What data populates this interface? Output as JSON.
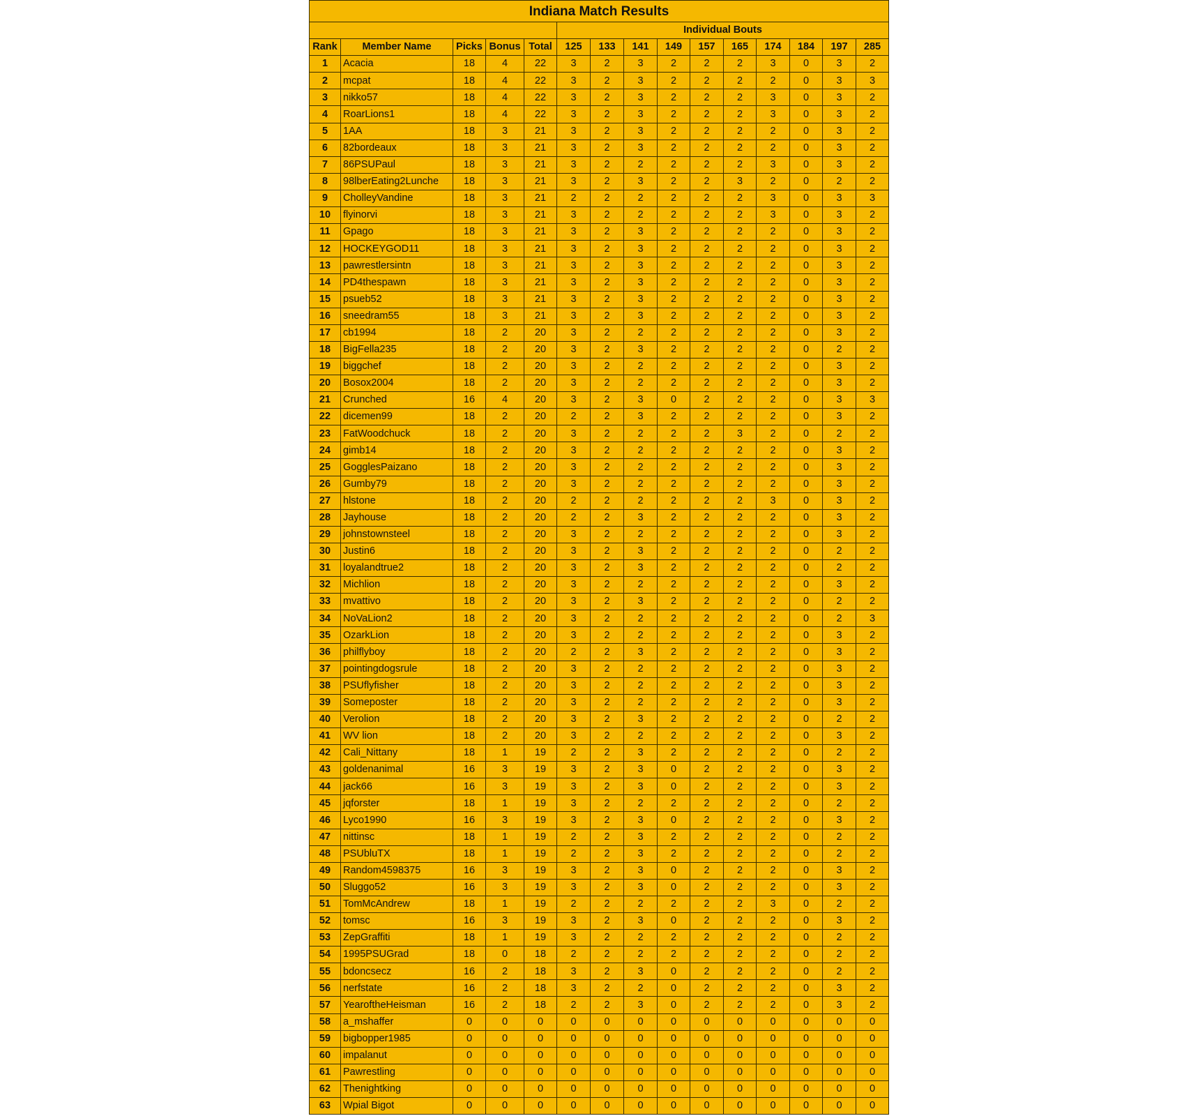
{
  "title": "Indiana Match Results",
  "group_header": "Individual Bouts",
  "columns": [
    "Rank",
    "Member Name",
    "Picks",
    "Bonus",
    "Total",
    "125",
    "133",
    "141",
    "149",
    "157",
    "165",
    "174",
    "184",
    "197",
    "285"
  ],
  "rows": [
    [
      "1",
      "Acacia",
      "18",
      "4",
      "22",
      "3",
      "2",
      "3",
      "2",
      "2",
      "2",
      "3",
      "0",
      "3",
      "2"
    ],
    [
      "2",
      "mcpat",
      "18",
      "4",
      "22",
      "3",
      "2",
      "3",
      "2",
      "2",
      "2",
      "2",
      "0",
      "3",
      "3"
    ],
    [
      "3",
      "nikko57",
      "18",
      "4",
      "22",
      "3",
      "2",
      "3",
      "2",
      "2",
      "2",
      "3",
      "0",
      "3",
      "2"
    ],
    [
      "4",
      "RoarLions1",
      "18",
      "4",
      "22",
      "3",
      "2",
      "3",
      "2",
      "2",
      "2",
      "3",
      "0",
      "3",
      "2"
    ],
    [
      "5",
      "1AA",
      "18",
      "3",
      "21",
      "3",
      "2",
      "3",
      "2",
      "2",
      "2",
      "2",
      "0",
      "3",
      "2"
    ],
    [
      "6",
      "82bordeaux",
      "18",
      "3",
      "21",
      "3",
      "2",
      "3",
      "2",
      "2",
      "2",
      "2",
      "0",
      "3",
      "2"
    ],
    [
      "7",
      "86PSUPaul",
      "18",
      "3",
      "21",
      "3",
      "2",
      "2",
      "2",
      "2",
      "2",
      "3",
      "0",
      "3",
      "2"
    ],
    [
      "8",
      "98lberEating2Lunche",
      "18",
      "3",
      "21",
      "3",
      "2",
      "3",
      "2",
      "2",
      "3",
      "2",
      "0",
      "2",
      "2"
    ],
    [
      "9",
      "CholleyVandine",
      "18",
      "3",
      "21",
      "2",
      "2",
      "2",
      "2",
      "2",
      "2",
      "3",
      "0",
      "3",
      "3"
    ],
    [
      "10",
      "flyinorvi",
      "18",
      "3",
      "21",
      "3",
      "2",
      "2",
      "2",
      "2",
      "2",
      "3",
      "0",
      "3",
      "2"
    ],
    [
      "11",
      "Gpago",
      "18",
      "3",
      "21",
      "3",
      "2",
      "3",
      "2",
      "2",
      "2",
      "2",
      "0",
      "3",
      "2"
    ],
    [
      "12",
      "HOCKEYGOD11",
      "18",
      "3",
      "21",
      "3",
      "2",
      "3",
      "2",
      "2",
      "2",
      "2",
      "0",
      "3",
      "2"
    ],
    [
      "13",
      "pawrestlersintn",
      "18",
      "3",
      "21",
      "3",
      "2",
      "3",
      "2",
      "2",
      "2",
      "2",
      "0",
      "3",
      "2"
    ],
    [
      "14",
      "PD4thespawn",
      "18",
      "3",
      "21",
      "3",
      "2",
      "3",
      "2",
      "2",
      "2",
      "2",
      "0",
      "3",
      "2"
    ],
    [
      "15",
      "psueb52",
      "18",
      "3",
      "21",
      "3",
      "2",
      "3",
      "2",
      "2",
      "2",
      "2",
      "0",
      "3",
      "2"
    ],
    [
      "16",
      "sneedram55",
      "18",
      "3",
      "21",
      "3",
      "2",
      "3",
      "2",
      "2",
      "2",
      "2",
      "0",
      "3",
      "2"
    ],
    [
      "17",
      "cb1994",
      "18",
      "2",
      "20",
      "3",
      "2",
      "2",
      "2",
      "2",
      "2",
      "2",
      "0",
      "3",
      "2"
    ],
    [
      "18",
      "BigFella235",
      "18",
      "2",
      "20",
      "3",
      "2",
      "3",
      "2",
      "2",
      "2",
      "2",
      "0",
      "2",
      "2"
    ],
    [
      "19",
      "biggchef",
      "18",
      "2",
      "20",
      "3",
      "2",
      "2",
      "2",
      "2",
      "2",
      "2",
      "0",
      "3",
      "2"
    ],
    [
      "20",
      "Bosox2004",
      "18",
      "2",
      "20",
      "3",
      "2",
      "2",
      "2",
      "2",
      "2",
      "2",
      "0",
      "3",
      "2"
    ],
    [
      "21",
      "Crunched",
      "16",
      "4",
      "20",
      "3",
      "2",
      "3",
      "0",
      "2",
      "2",
      "2",
      "0",
      "3",
      "3"
    ],
    [
      "22",
      "dicemen99",
      "18",
      "2",
      "20",
      "2",
      "2",
      "3",
      "2",
      "2",
      "2",
      "2",
      "0",
      "3",
      "2"
    ],
    [
      "23",
      "FatWoodchuck",
      "18",
      "2",
      "20",
      "3",
      "2",
      "2",
      "2",
      "2",
      "3",
      "2",
      "0",
      "2",
      "2"
    ],
    [
      "24",
      "gimb14",
      "18",
      "2",
      "20",
      "3",
      "2",
      "2",
      "2",
      "2",
      "2",
      "2",
      "0",
      "3",
      "2"
    ],
    [
      "25",
      "GogglesPaizano",
      "18",
      "2",
      "20",
      "3",
      "2",
      "2",
      "2",
      "2",
      "2",
      "2",
      "0",
      "3",
      "2"
    ],
    [
      "26",
      "Gumby79",
      "18",
      "2",
      "20",
      "3",
      "2",
      "2",
      "2",
      "2",
      "2",
      "2",
      "0",
      "3",
      "2"
    ],
    [
      "27",
      "hlstone",
      "18",
      "2",
      "20",
      "2",
      "2",
      "2",
      "2",
      "2",
      "2",
      "3",
      "0",
      "3",
      "2"
    ],
    [
      "28",
      "Jayhouse",
      "18",
      "2",
      "20",
      "2",
      "2",
      "3",
      "2",
      "2",
      "2",
      "2",
      "0",
      "3",
      "2"
    ],
    [
      "29",
      "johnstownsteel",
      "18",
      "2",
      "20",
      "3",
      "2",
      "2",
      "2",
      "2",
      "2",
      "2",
      "0",
      "3",
      "2"
    ],
    [
      "30",
      "Justin6",
      "18",
      "2",
      "20",
      "3",
      "2",
      "3",
      "2",
      "2",
      "2",
      "2",
      "0",
      "2",
      "2"
    ],
    [
      "31",
      "loyalandtrue2",
      "18",
      "2",
      "20",
      "3",
      "2",
      "3",
      "2",
      "2",
      "2",
      "2",
      "0",
      "2",
      "2"
    ],
    [
      "32",
      "Michlion",
      "18",
      "2",
      "20",
      "3",
      "2",
      "2",
      "2",
      "2",
      "2",
      "2",
      "0",
      "3",
      "2"
    ],
    [
      "33",
      "mvattivo",
      "18",
      "2",
      "20",
      "3",
      "2",
      "3",
      "2",
      "2",
      "2",
      "2",
      "0",
      "2",
      "2"
    ],
    [
      "34",
      "NoVaLion2",
      "18",
      "2",
      "20",
      "3",
      "2",
      "2",
      "2",
      "2",
      "2",
      "2",
      "0",
      "2",
      "3"
    ],
    [
      "35",
      "OzarkLion",
      "18",
      "2",
      "20",
      "3",
      "2",
      "2",
      "2",
      "2",
      "2",
      "2",
      "0",
      "3",
      "2"
    ],
    [
      "36",
      "philflyboy",
      "18",
      "2",
      "20",
      "2",
      "2",
      "3",
      "2",
      "2",
      "2",
      "2",
      "0",
      "3",
      "2"
    ],
    [
      "37",
      "pointingdogsrule",
      "18",
      "2",
      "20",
      "3",
      "2",
      "2",
      "2",
      "2",
      "2",
      "2",
      "0",
      "3",
      "2"
    ],
    [
      "38",
      "PSUflyfisher",
      "18",
      "2",
      "20",
      "3",
      "2",
      "2",
      "2",
      "2",
      "2",
      "2",
      "0",
      "3",
      "2"
    ],
    [
      "39",
      "Someposter",
      "18",
      "2",
      "20",
      "3",
      "2",
      "2",
      "2",
      "2",
      "2",
      "2",
      "0",
      "3",
      "2"
    ],
    [
      "40",
      "Verolion",
      "18",
      "2",
      "20",
      "3",
      "2",
      "3",
      "2",
      "2",
      "2",
      "2",
      "0",
      "2",
      "2"
    ],
    [
      "41",
      "WV lion",
      "18",
      "2",
      "20",
      "3",
      "2",
      "2",
      "2",
      "2",
      "2",
      "2",
      "0",
      "3",
      "2"
    ],
    [
      "42",
      "Cali_Nittany",
      "18",
      "1",
      "19",
      "2",
      "2",
      "3",
      "2",
      "2",
      "2",
      "2",
      "0",
      "2",
      "2"
    ],
    [
      "43",
      "goldenanimal",
      "16",
      "3",
      "19",
      "3",
      "2",
      "3",
      "0",
      "2",
      "2",
      "2",
      "0",
      "3",
      "2"
    ],
    [
      "44",
      "jack66",
      "16",
      "3",
      "19",
      "3",
      "2",
      "3",
      "0",
      "2",
      "2",
      "2",
      "0",
      "3",
      "2"
    ],
    [
      "45",
      "jqforster",
      "18",
      "1",
      "19",
      "3",
      "2",
      "2",
      "2",
      "2",
      "2",
      "2",
      "0",
      "2",
      "2"
    ],
    [
      "46",
      "Lyco1990",
      "16",
      "3",
      "19",
      "3",
      "2",
      "3",
      "0",
      "2",
      "2",
      "2",
      "0",
      "3",
      "2"
    ],
    [
      "47",
      "nittinsc",
      "18",
      "1",
      "19",
      "2",
      "2",
      "3",
      "2",
      "2",
      "2",
      "2",
      "0",
      "2",
      "2"
    ],
    [
      "48",
      "PSUbluTX",
      "18",
      "1",
      "19",
      "2",
      "2",
      "3",
      "2",
      "2",
      "2",
      "2",
      "0",
      "2",
      "2"
    ],
    [
      "49",
      "Random4598375",
      "16",
      "3",
      "19",
      "3",
      "2",
      "3",
      "0",
      "2",
      "2",
      "2",
      "0",
      "3",
      "2"
    ],
    [
      "50",
      "Sluggo52",
      "16",
      "3",
      "19",
      "3",
      "2",
      "3",
      "0",
      "2",
      "2",
      "2",
      "0",
      "3",
      "2"
    ],
    [
      "51",
      "TomMcAndrew",
      "18",
      "1",
      "19",
      "2",
      "2",
      "2",
      "2",
      "2",
      "2",
      "3",
      "0",
      "2",
      "2"
    ],
    [
      "52",
      "tomsc",
      "16",
      "3",
      "19",
      "3",
      "2",
      "3",
      "0",
      "2",
      "2",
      "2",
      "0",
      "3",
      "2"
    ],
    [
      "53",
      "ZepGraffiti",
      "18",
      "1",
      "19",
      "3",
      "2",
      "2",
      "2",
      "2",
      "2",
      "2",
      "0",
      "2",
      "2"
    ],
    [
      "54",
      "1995PSUGrad",
      "18",
      "0",
      "18",
      "2",
      "2",
      "2",
      "2",
      "2",
      "2",
      "2",
      "0",
      "2",
      "2"
    ],
    [
      "55",
      "bdoncsecz",
      "16",
      "2",
      "18",
      "3",
      "2",
      "3",
      "0",
      "2",
      "2",
      "2",
      "0",
      "2",
      "2"
    ],
    [
      "56",
      "nerfstate",
      "16",
      "2",
      "18",
      "3",
      "2",
      "2",
      "0",
      "2",
      "2",
      "2",
      "0",
      "3",
      "2"
    ],
    [
      "57",
      "YearoftheHeisman",
      "16",
      "2",
      "18",
      "2",
      "2",
      "3",
      "0",
      "2",
      "2",
      "2",
      "0",
      "3",
      "2"
    ],
    [
      "58",
      "a_mshaffer",
      "0",
      "0",
      "0",
      "0",
      "0",
      "0",
      "0",
      "0",
      "0",
      "0",
      "0",
      "0",
      "0"
    ],
    [
      "59",
      "bigbopper1985",
      "0",
      "0",
      "0",
      "0",
      "0",
      "0",
      "0",
      "0",
      "0",
      "0",
      "0",
      "0",
      "0"
    ],
    [
      "60",
      "impalanut",
      "0",
      "0",
      "0",
      "0",
      "0",
      "0",
      "0",
      "0",
      "0",
      "0",
      "0",
      "0",
      "0"
    ],
    [
      "61",
      "Pawrestling",
      "0",
      "0",
      "0",
      "0",
      "0",
      "0",
      "0",
      "0",
      "0",
      "0",
      "0",
      "0",
      "0"
    ],
    [
      "62",
      "Thenightking",
      "0",
      "0",
      "0",
      "0",
      "0",
      "0",
      "0",
      "0",
      "0",
      "0",
      "0",
      "0",
      "0"
    ],
    [
      "63",
      "Wpial Bigot",
      "0",
      "0",
      "0",
      "0",
      "0",
      "0",
      "0",
      "0",
      "0",
      "0",
      "0",
      "0",
      "0"
    ]
  ],
  "colors": {
    "background": "#f5b800",
    "gridline": "#3a2e00",
    "text": "#111111"
  }
}
